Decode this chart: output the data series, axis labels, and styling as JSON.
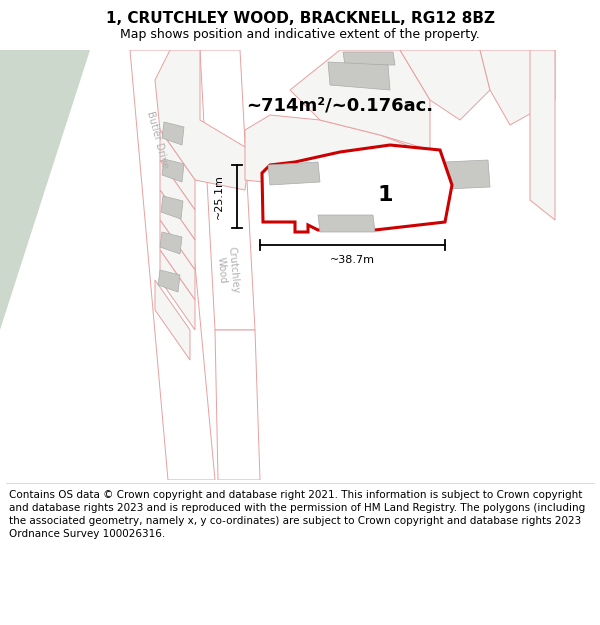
{
  "title": "1, CRUTCHLEY WOOD, BRACKNELL, RG12 8BZ",
  "subtitle": "Map shows position and indicative extent of the property.",
  "footer": "Contains OS data © Crown copyright and database right 2021. This information is subject to Crown copyright and database rights 2023 and is reproduced with the permission of HM Land Registry. The polygons (including the associated geometry, namely x, y co-ordinates) are subject to Crown copyright and database rights 2023 Ordnance Survey 100026316.",
  "area_label": "~714m²/~0.176ac.",
  "plot_number": "1",
  "dim_width": "~38.7m",
  "dim_height": "~25.1m",
  "bg_color": "#f5f5f2",
  "road_color": "#ffffff",
  "boundary_color": "#cc0000",
  "building_fill": "#c8c8c4",
  "road_outline_color": "#e8a0a0",
  "green_area_color": "#ccd8cc",
  "title_fontsize": 11,
  "subtitle_fontsize": 9,
  "footer_fontsize": 7.5,
  "road_label_color": "#b0b0b0",
  "map_bg": "#f8f8f5"
}
